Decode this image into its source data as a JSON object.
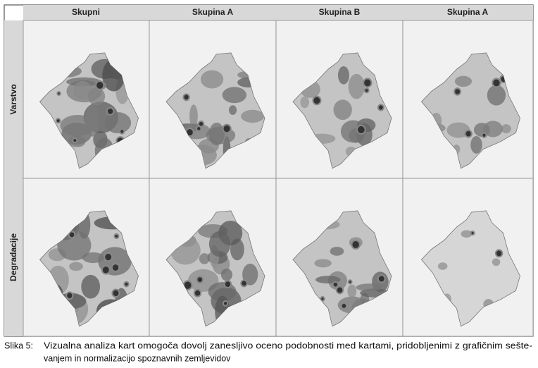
{
  "figure": {
    "columns": [
      "Skupni",
      "Skupina A",
      "Skupina B",
      "Skupina A"
    ],
    "rows": [
      "Varstvo",
      "Degradacije"
    ],
    "caption": {
      "label": "Slika 5:",
      "lines": [
        "Vizualna analiza kart omogoča dovolj zanesljivo oceno podobnosti med kartami, pridobljenimi z grafičnim sešte-",
        "vanjem in normalizacijo spoznavnih zemljevidov"
      ]
    }
  }
}
